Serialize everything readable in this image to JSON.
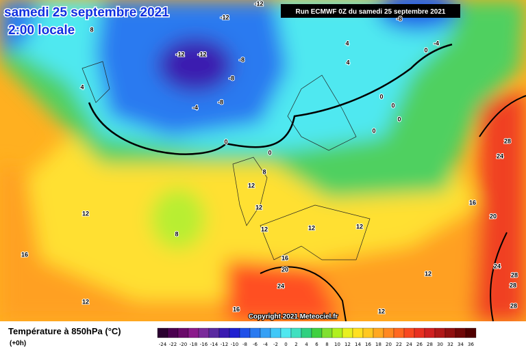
{
  "map": {
    "date_title": "samedi 25 septembre 2021",
    "time_title": "2:00 locale",
    "run_label": "Run ECMWF 0Z du samedi 25 septembre 2021",
    "copyright": "Copyright 2021 Meteociel.fr",
    "legend_title": "Température à 850hPa (°C)",
    "lead_time": "(+0h)",
    "contour_labels": [
      -12,
      -12,
      -12,
      -12,
      -8,
      -8,
      -8,
      -4,
      -4,
      -8,
      0,
      4,
      4,
      4,
      8,
      0,
      0,
      0,
      0,
      0,
      0,
      8,
      12,
      12,
      12,
      8,
      16,
      12,
      12,
      12,
      16,
      20,
      24,
      28,
      16,
      20,
      24,
      24,
      28,
      28,
      28,
      12,
      12,
      16,
      12
    ],
    "colorbar": {
      "ticks": [
        -24,
        -22,
        -20,
        -18,
        -16,
        -14,
        -12,
        -10,
        -8,
        -6,
        -4,
        -2,
        0,
        2,
        4,
        6,
        8,
        10,
        12,
        14,
        16,
        18,
        20,
        22,
        24,
        26,
        28,
        30,
        32,
        34,
        36
      ],
      "colors": [
        "#2a0030",
        "#4b0050",
        "#6a0a6a",
        "#8b1a8b",
        "#7a2a9a",
        "#5a2aa0",
        "#3a1ab0",
        "#2020d0",
        "#2050e8",
        "#2a7af0",
        "#35a0f5",
        "#40c8f8",
        "#50e8f0",
        "#40e0c0",
        "#30d080",
        "#40d040",
        "#80e030",
        "#b0f020",
        "#e8f020",
        "#ffe020",
        "#ffc820",
        "#ffa820",
        "#ff8820",
        "#ff6820",
        "#f84820",
        "#e83020",
        "#d02020",
        "#b01818",
        "#901010",
        "#700808",
        "#500000"
      ]
    }
  }
}
